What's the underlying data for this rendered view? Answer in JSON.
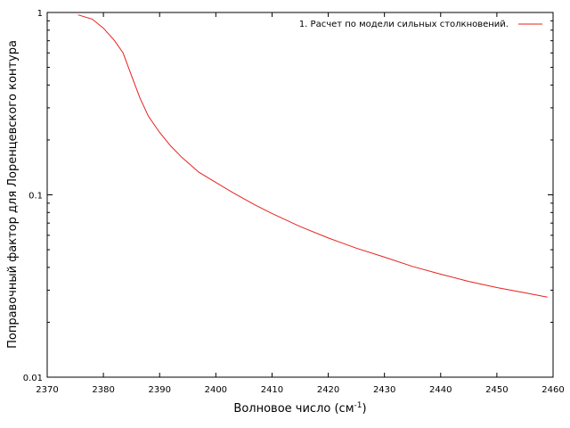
{
  "chart_data": {
    "type": "line",
    "xlabel": "Волновое число (см",
    "xlabel_sup": "-1",
    "xlabel_close": ")",
    "ylabel": "Поправочный фактор для Лоренцевского контура",
    "xlim": [
      2370,
      2460
    ],
    "ylim": [
      0.01,
      1
    ],
    "yscale": "log",
    "x_ticks": [
      2370,
      2380,
      2390,
      2400,
      2410,
      2420,
      2430,
      2440,
      2450,
      2460
    ],
    "y_ticks": [
      {
        "value": 1,
        "label": "1"
      },
      {
        "value": 0.1,
        "label": "0.1"
      },
      {
        "value": 0.01,
        "label": "0.01"
      }
    ],
    "legend_position": "top-right",
    "colors": {
      "series": "#e8201c"
    },
    "series": [
      {
        "name": "1. Расчет по модели сильных столкновений.",
        "x": [
          2375.5,
          2378,
          2380,
          2382,
          2383.5,
          2385,
          2386.5,
          2388,
          2390,
          2392,
          2394,
          2397,
          2400,
          2403,
          2407,
          2410,
          2415,
          2420,
          2425,
          2430,
          2435,
          2440,
          2445,
          2450,
          2455,
          2459
        ],
        "y": [
          0.97,
          0.92,
          0.82,
          0.7,
          0.6,
          0.45,
          0.34,
          0.27,
          0.22,
          0.185,
          0.16,
          0.133,
          0.117,
          0.103,
          0.088,
          0.079,
          0.067,
          0.058,
          0.051,
          0.0455,
          0.0405,
          0.0367,
          0.0335,
          0.031,
          0.029,
          0.0275
        ]
      }
    ]
  }
}
